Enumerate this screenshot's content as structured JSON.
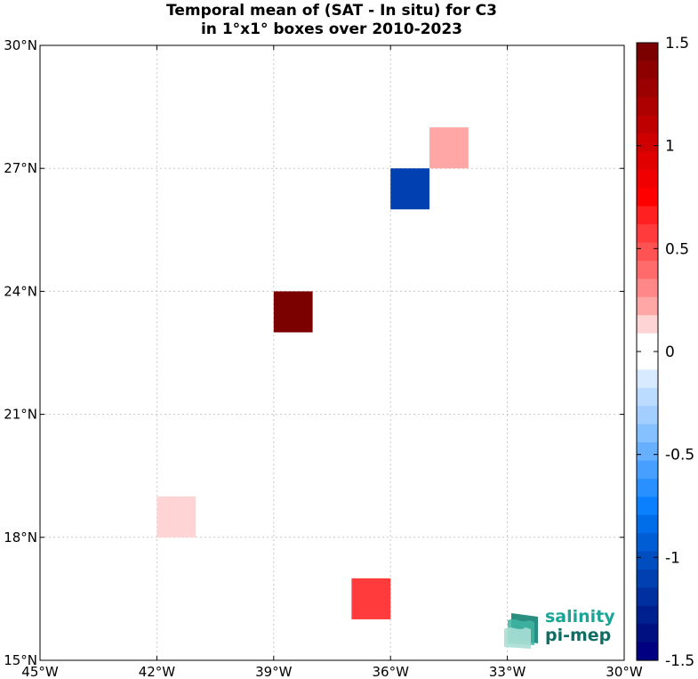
{
  "title": {
    "line1": "Temporal mean of (SAT - In situ) for C3",
    "line2": "in 1°x1° boxes over 2010-2023"
  },
  "logo": {
    "line1": "salinity",
    "line2": "pi-mep",
    "color": "#1aa596"
  },
  "chart_data": {
    "type": "heatmap",
    "title": "Temporal mean of (SAT - In situ) for C3 in 1°x1° boxes over 2010-2023",
    "xlabel": "",
    "ylabel": "",
    "xlim": [
      -45,
      -30
    ],
    "ylim": [
      15,
      30
    ],
    "grid": true,
    "x_ticks": [
      -45,
      -42,
      -39,
      -36,
      -33,
      -30
    ],
    "x_tick_labels": [
      "45°W",
      "42°W",
      "39°W",
      "36°W",
      "33°W",
      "30°W"
    ],
    "y_ticks": [
      15,
      18,
      21,
      24,
      27,
      30
    ],
    "y_tick_labels": [
      "15°N",
      "18°N",
      "21°N",
      "24°N",
      "27°N",
      "30°N"
    ],
    "cells": [
      {
        "lon": -35,
        "lat": 27,
        "value": 0.25
      },
      {
        "lon": -36,
        "lat": 26,
        "value": -1.1
      },
      {
        "lon": -39,
        "lat": 23,
        "value": 1.5
      },
      {
        "lon": -42,
        "lat": 18,
        "value": 0.15
      },
      {
        "lon": -37,
        "lat": 16,
        "value": 0.6
      }
    ],
    "colorbar": {
      "range": [
        -1.5,
        1.5
      ],
      "ticks": [
        1.5,
        1,
        0.5,
        0,
        -0.5,
        -1,
        -1.5
      ],
      "tick_labels": [
        "1.5",
        "1",
        "0.5",
        "0",
        "-0.5",
        "-1",
        "-1.5"
      ],
      "colors": [
        "#7b0000",
        "#8c0000",
        "#9c0000",
        "#ad0000",
        "#be0000",
        "#cf0000",
        "#e00000",
        "#f00000",
        "#ff0000",
        "#ff2121",
        "#ff3b3b",
        "#ff5252",
        "#ff6b6b",
        "#ff8787",
        "#ffa6a6",
        "#ffd4d4",
        "#ffffff",
        "#ffffff",
        "#d8eaff",
        "#bcdcff",
        "#a3cfff",
        "#85c0ff",
        "#66b0ff",
        "#47a0ff",
        "#2990ff",
        "#0a80ff",
        "#006de8",
        "#005dd4",
        "#004dc0",
        "#0040b0",
        "#0030a0",
        "#002090",
        "#001080",
        "#000080"
      ]
    }
  }
}
